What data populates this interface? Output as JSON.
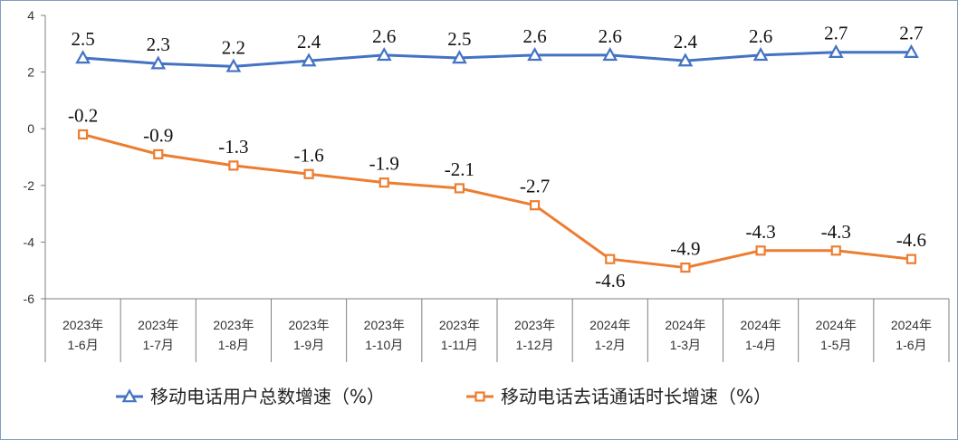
{
  "chart_data": {
    "type": "line",
    "categories": [
      [
        "2023年",
        "1-6月"
      ],
      [
        "2023年",
        "1-7月"
      ],
      [
        "2023年",
        "1-8月"
      ],
      [
        "2023年",
        "1-9月"
      ],
      [
        "2023年",
        "1-10月"
      ],
      [
        "2023年",
        "1-11月"
      ],
      [
        "2023年",
        "1-12月"
      ],
      [
        "2024年",
        "1-2月"
      ],
      [
        "2024年",
        "1-3月"
      ],
      [
        "2024年",
        "1-4月"
      ],
      [
        "2024年",
        "1-5月"
      ],
      [
        "2024年",
        "1-6月"
      ]
    ],
    "series": [
      {
        "name": "移动电话用户总数增速（%）",
        "marker": "triangle",
        "color": "#4472c4",
        "values": [
          2.5,
          2.3,
          2.2,
          2.4,
          2.6,
          2.5,
          2.6,
          2.6,
          2.4,
          2.6,
          2.7,
          2.7
        ],
        "labels": [
          "2.5",
          "2.3",
          "2.2",
          "2.4",
          "2.6",
          "2.5",
          "2.6",
          "2.6",
          "2.4",
          "2.6",
          "2.7",
          "2.7"
        ]
      },
      {
        "name": "移动电话去话通话时长增速（%）",
        "marker": "square",
        "color": "#ed7d31",
        "values": [
          -0.2,
          -0.9,
          -1.3,
          -1.6,
          -1.9,
          -2.1,
          -2.7,
          -4.6,
          -4.9,
          -4.3,
          -4.3,
          -4.6
        ],
        "labels": [
          "-0.2",
          "-0.9",
          "-1.3",
          "-1.6",
          "-1.9",
          "-2.1",
          "-2.7",
          "-4.6",
          "-4.9",
          "-4.3",
          "-4.3",
          "-4.6"
        ]
      }
    ],
    "yticks": [
      "4",
      "2",
      "0",
      "-2",
      "-4",
      "-6"
    ],
    "ylim": [
      -6,
      4
    ],
    "grid": false,
    "legend": "bottom"
  }
}
